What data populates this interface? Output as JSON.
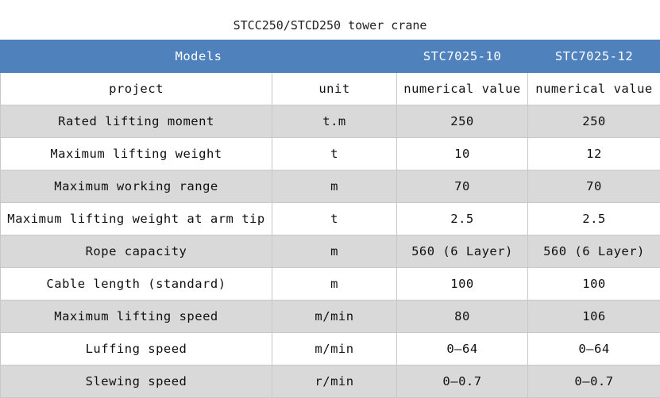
{
  "title": "STCC250/STCD250 tower crane",
  "header": {
    "models": "Models",
    "model_1": "STC7025-10",
    "model_2": "STC7025-12"
  },
  "colors": {
    "header_bg": "#4f81bd",
    "stripe": "#d9d9d9"
  },
  "rows": [
    {
      "project": "project",
      "unit": "unit",
      "v1": "numerical value",
      "v2": "numerical value"
    },
    {
      "project": "Rated lifting moment",
      "unit": "t.m",
      "v1": "250",
      "v2": "250"
    },
    {
      "project": "Maximum lifting weight",
      "unit": "t",
      "v1": "10",
      "v2": "12"
    },
    {
      "project": "Maximum working range",
      "unit": "m",
      "v1": "70",
      "v2": "70"
    },
    {
      "project": "Maximum lifting weight at arm tip",
      "unit": "t",
      "v1": "2.5",
      "v2": "2.5"
    },
    {
      "project": "Rope capacity",
      "unit": "m",
      "v1": "560 (6 Layer)",
      "v2": "560 (6 Layer)"
    },
    {
      "project": "Cable length (standard)",
      "unit": "m",
      "v1": "100",
      "v2": "100"
    },
    {
      "project": "Maximum lifting speed",
      "unit": "m/min",
      "v1": "80",
      "v2": "106"
    },
    {
      "project": "Luffing speed",
      "unit": "m/min",
      "v1": "0—64",
      "v2": "0—64"
    },
    {
      "project": "Slewing speed",
      "unit": "r/min",
      "v1": "0—0.7",
      "v2": "0—0.7"
    }
  ]
}
